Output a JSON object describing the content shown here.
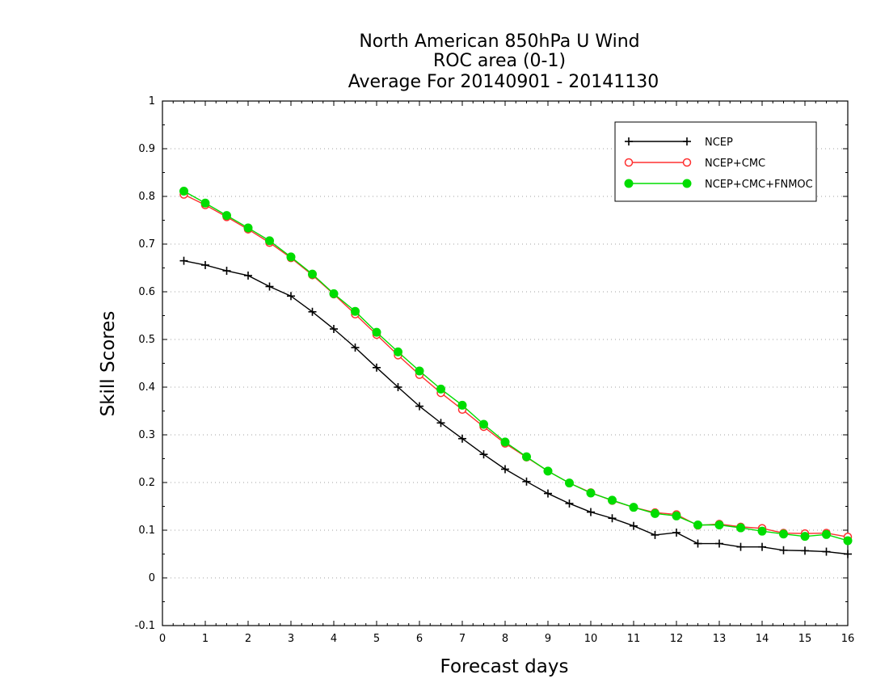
{
  "chart_data": {
    "type": "line",
    "title": [
      "North American 850hPa U Wind",
      "ROC area (0-1)",
      "Average For 20140901 - 20141130"
    ],
    "xlabel": "Forecast days",
    "ylabel": "Skill Scores",
    "xlim": [
      0,
      16
    ],
    "ylim": [
      -0.1,
      1
    ],
    "xticks": [
      0,
      1,
      2,
      3,
      4,
      5,
      6,
      7,
      8,
      9,
      10,
      11,
      12,
      13,
      14,
      15,
      16
    ],
    "xtick_labels": [
      "0",
      "1",
      "2",
      "3",
      "4",
      "5",
      "6",
      "7",
      "8",
      "9",
      "10",
      "11",
      "12",
      "13",
      "14",
      "15",
      "16"
    ],
    "yticks": [
      -0.1,
      0,
      0.1,
      0.2,
      0.3,
      0.4,
      0.5,
      0.6,
      0.7,
      0.8,
      0.9,
      1
    ],
    "ytick_labels": [
      "-0.1",
      "0",
      "0.1",
      "0.2",
      "0.3",
      "0.4",
      "0.5",
      "0.6",
      "0.7",
      "0.8",
      "0.9",
      "1"
    ],
    "grid": "horizontal dotted",
    "legend_position": "top-right",
    "x": [
      0.5,
      1,
      1.5,
      2,
      2.5,
      3,
      3.5,
      4,
      4.5,
      5,
      5.5,
      6,
      6.5,
      7,
      7.5,
      8,
      8.5,
      9,
      9.5,
      10,
      10.5,
      11,
      11.5,
      12,
      12.5,
      13,
      13.5,
      14,
      14.5,
      15,
      15.5,
      16
    ],
    "series": [
      {
        "name": "NCEP",
        "color": "#000000",
        "marker": "plus",
        "values": [
          0.665,
          0.656,
          0.644,
          0.634,
          0.611,
          0.591,
          0.558,
          0.522,
          0.483,
          0.441,
          0.4,
          0.36,
          0.325,
          0.292,
          0.259,
          0.228,
          0.202,
          0.177,
          0.156,
          0.138,
          0.125,
          0.109,
          0.09,
          0.095,
          0.072,
          0.072,
          0.065,
          0.065,
          0.058,
          0.057,
          0.055,
          0.05
        ]
      },
      {
        "name": "NCEP+CMC",
        "color": "#ff3030",
        "marker": "open-circle",
        "values": [
          0.804,
          0.782,
          0.757,
          0.731,
          0.703,
          0.671,
          0.635,
          0.595,
          0.553,
          0.51,
          0.467,
          0.426,
          0.388,
          0.353,
          0.317,
          0.282,
          0.253,
          0.224,
          0.199,
          0.179,
          0.162,
          0.148,
          0.137,
          0.133,
          0.11,
          0.113,
          0.107,
          0.104,
          0.094,
          0.093,
          0.094,
          0.086
        ]
      },
      {
        "name": "NCEP+CMC+FNMOC",
        "color": "#00dd00",
        "marker": "filled-circle",
        "values": [
          0.811,
          0.786,
          0.76,
          0.734,
          0.707,
          0.673,
          0.637,
          0.596,
          0.559,
          0.515,
          0.474,
          0.434,
          0.396,
          0.362,
          0.322,
          0.285,
          0.254,
          0.224,
          0.199,
          0.178,
          0.163,
          0.148,
          0.135,
          0.13,
          0.111,
          0.111,
          0.105,
          0.098,
          0.092,
          0.087,
          0.091,
          0.078
        ]
      }
    ]
  }
}
